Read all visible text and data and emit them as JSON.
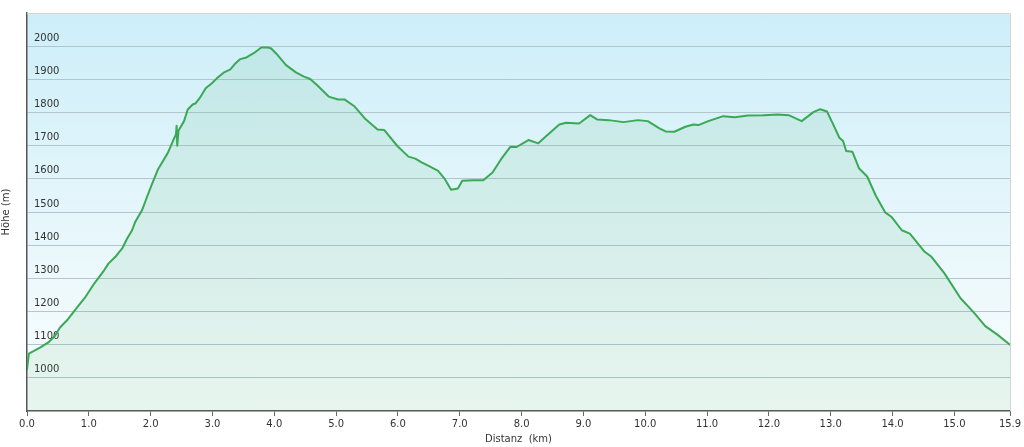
{
  "chart_data": {
    "type": "area",
    "xlabel": "Distanz  (km)",
    "ylabel": "Höhe (m)",
    "x": [
      0,
      0.03,
      0.21,
      0.34,
      0.45,
      0.53,
      0.66,
      0.82,
      0.95,
      1.09,
      1.25,
      1.32,
      1.43,
      1.54,
      1.62,
      1.7,
      1.75,
      1.86,
      1.93,
      2.01,
      2.12,
      2.2,
      2.28,
      2.36,
      2.41,
      2.42,
      2.43,
      2.45,
      2.49,
      2.54,
      2.6,
      2.68,
      2.73,
      2.81,
      2.89,
      2.99,
      3.07,
      3.18,
      3.29,
      3.37,
      3.45,
      3.55,
      3.66,
      3.79,
      3.9,
      3.95,
      4.03,
      4.19,
      4.35,
      4.48,
      4.58,
      4.69,
      4.88,
      5.03,
      5.14,
      5.3,
      5.46,
      5.67,
      5.78,
      5.99,
      6.17,
      6.28,
      6.39,
      6.52,
      6.65,
      6.76,
      6.86,
      6.97,
      7.04,
      7.21,
      7.38,
      7.53,
      7.66,
      7.82,
      7.92,
      8.11,
      8.27,
      8.4,
      8.61,
      8.72,
      8.93,
      9.11,
      9.22,
      9.41,
      9.65,
      9.88,
      10.04,
      10.23,
      10.33,
      10.47,
      10.65,
      10.78,
      10.86,
      11.02,
      11.26,
      11.45,
      11.66,
      11.92,
      12.14,
      12.32,
      12.53,
      12.72,
      12.83,
      12.94,
      13.04,
      13.14,
      13.2,
      13.25,
      13.35,
      13.46,
      13.59,
      13.73,
      13.88,
      13.99,
      14.15,
      14.28,
      14.52,
      14.63,
      14.84,
      15.1,
      15.32,
      15.5,
      15.69,
      15.9
    ],
    "series": [
      {
        "color": "#3aa856",
        "values": [
          1025,
          1073,
          1091,
          1106,
          1126,
          1151,
          1176,
          1215,
          1245,
          1285,
          1325,
          1345,
          1365,
          1390,
          1420,
          1445,
          1470,
          1505,
          1540,
          1579,
          1629,
          1654,
          1679,
          1714,
          1734,
          1760,
          1700,
          1745,
          1758,
          1774,
          1809,
          1824,
          1828,
          1848,
          1873,
          1888,
          1903,
          1920,
          1930,
          1948,
          1961,
          1966,
          1978,
          1996,
          1996,
          1993,
          1978,
          1943,
          1921,
          1908,
          1901,
          1883,
          1848,
          1839,
          1839,
          1818,
          1783,
          1749,
          1747,
          1699,
          1667,
          1661,
          1649,
          1637,
          1624,
          1599,
          1567,
          1571,
          1594,
          1596,
          1596,
          1619,
          1657,
          1697,
          1696,
          1717,
          1707,
          1729,
          1764,
          1769,
          1767,
          1792,
          1779,
          1777,
          1771,
          1777,
          1774,
          1752,
          1743,
          1742,
          1757,
          1764,
          1762,
          1774,
          1789,
          1786,
          1791,
          1792,
          1794,
          1792,
          1774,
          1801,
          1810,
          1803,
          1764,
          1724,
          1714,
          1684,
          1682,
          1631,
          1607,
          1549,
          1499,
          1484,
          1445,
          1435,
          1380,
          1365,
          1315,
          1240,
          1196,
          1156,
          1131,
          1100
        ]
      }
    ],
    "xlim": [
      0,
      15.9
    ],
    "xticks": [
      {
        "value": 0,
        "label": "0.0"
      },
      {
        "value": 1,
        "label": "1.0"
      },
      {
        "value": 2,
        "label": "2.0"
      },
      {
        "value": 3,
        "label": "3.0"
      },
      {
        "value": 4,
        "label": "4.0"
      },
      {
        "value": 5,
        "label": "5.0"
      },
      {
        "value": 6,
        "label": "6.0"
      },
      {
        "value": 7,
        "label": "7.0"
      },
      {
        "value": 8,
        "label": "8.0"
      },
      {
        "value": 9,
        "label": "9.0"
      },
      {
        "value": 10,
        "label": "10.0"
      },
      {
        "value": 11,
        "label": "11.0"
      },
      {
        "value": 12,
        "label": "12.0"
      },
      {
        "value": 13,
        "label": "13.0"
      },
      {
        "value": 14,
        "label": "14.0"
      },
      {
        "value": 15,
        "label": "15.0"
      },
      {
        "value": 15.9,
        "label": "15.9"
      }
    ],
    "ylim": [
      900,
      2100
    ],
    "yticks": [
      1000,
      1100,
      1200,
      1300,
      1400,
      1500,
      1600,
      1700,
      1800,
      1900,
      2000
    ],
    "grid": "y"
  }
}
